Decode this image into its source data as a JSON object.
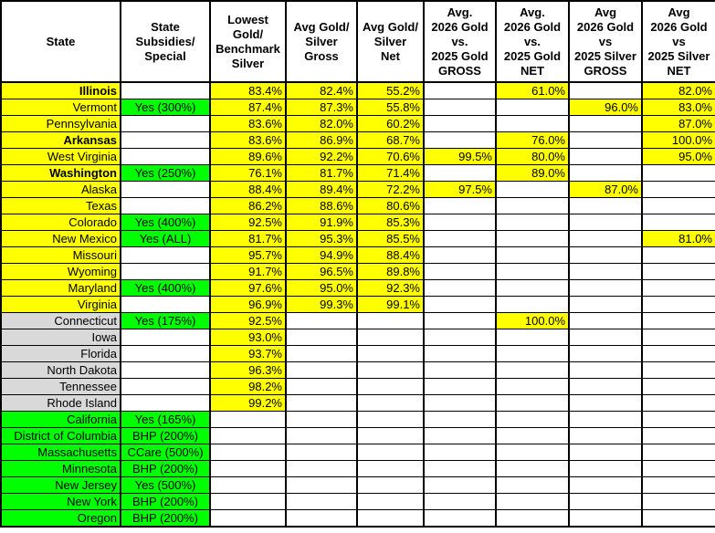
{
  "colors": {
    "highlight_yellow": "#FFFF00",
    "subsidy_green": "#00FF00",
    "group_gray": "#D9D9D9",
    "gridline_black": "#000000",
    "cell_white": "#FFFFFF"
  },
  "table": {
    "columns": [
      "State",
      "State\nSubsidies/\nSpecial",
      "Lowest\nGold/\nBenchmark\nSilver",
      "Avg Gold/\nSilver\nGross",
      "Avg Gold/\nSilver\nNet",
      "Avg.\n2026 Gold\nvs.\n2025 Gold\nGROSS",
      "Avg.\n2026 Gold\nvs.\n2025 Gold\nNET",
      "Avg\n2026 Gold\nvs\n2025 Silver\nGROSS",
      "Avg\n2026 Gold\nvs\n2025 Silver\nNET"
    ],
    "rows": [
      {
        "state": "Illinois",
        "bold": true,
        "group": "yellow",
        "subsidy": "",
        "values": [
          "83.4%",
          "82.4%",
          "55.2%",
          "",
          "61.0%",
          "",
          "82.0%"
        ]
      },
      {
        "state": "Vermont",
        "bold": false,
        "group": "yellow",
        "subsidy": "Yes (300%)",
        "values": [
          "87.4%",
          "87.3%",
          "55.8%",
          "",
          "",
          "96.0%",
          "83.0%"
        ]
      },
      {
        "state": "Pennsylvania",
        "bold": false,
        "group": "yellow",
        "subsidy": "",
        "values": [
          "83.6%",
          "82.0%",
          "60.2%",
          "",
          "",
          "",
          "87.0%"
        ]
      },
      {
        "state": "Arkansas",
        "bold": true,
        "group": "yellow",
        "subsidy": "",
        "values": [
          "83.6%",
          "86.9%",
          "68.7%",
          "",
          "76.0%",
          "",
          "100.0%"
        ]
      },
      {
        "state": "West Virginia",
        "bold": false,
        "group": "yellow",
        "subsidy": "",
        "values": [
          "89.6%",
          "92.2%",
          "70.6%",
          "99.5%",
          "80.0%",
          "",
          "95.0%"
        ]
      },
      {
        "state": "Washington",
        "bold": true,
        "group": "yellow",
        "subsidy": "Yes (250%)",
        "values": [
          "76.1%",
          "81.7%",
          "71.4%",
          "",
          "89.0%",
          "",
          ""
        ]
      },
      {
        "state": "Alaska",
        "bold": false,
        "group": "yellow",
        "subsidy": "",
        "values": [
          "88.4%",
          "89.4%",
          "72.2%",
          "97.5%",
          "",
          "87.0%",
          ""
        ]
      },
      {
        "state": "Texas",
        "bold": false,
        "group": "yellow",
        "subsidy": "",
        "values": [
          "86.2%",
          "88.6%",
          "80.6%",
          "",
          "",
          "",
          ""
        ]
      },
      {
        "state": "Colorado",
        "bold": false,
        "group": "yellow",
        "subsidy": "Yes (400%)",
        "values": [
          "92.5%",
          "91.9%",
          "85.3%",
          "",
          "",
          "",
          ""
        ]
      },
      {
        "state": "New Mexico",
        "bold": false,
        "group": "yellow",
        "subsidy": "Yes (ALL)",
        "values": [
          "81.7%",
          "95.3%",
          "85.5%",
          "",
          "",
          "",
          "81.0%"
        ]
      },
      {
        "state": "Missouri",
        "bold": false,
        "group": "yellow",
        "subsidy": "",
        "values": [
          "95.7%",
          "94.9%",
          "88.4%",
          "",
          "",
          "",
          ""
        ]
      },
      {
        "state": "Wyoming",
        "bold": false,
        "group": "yellow",
        "subsidy": "",
        "values": [
          "91.7%",
          "96.5%",
          "89.8%",
          "",
          "",
          "",
          ""
        ]
      },
      {
        "state": "Maryland",
        "bold": false,
        "group": "yellow",
        "subsidy": "Yes (400%)",
        "values": [
          "97.6%",
          "95.0%",
          "92.3%",
          "",
          "",
          "",
          ""
        ]
      },
      {
        "state": "Virginia",
        "bold": false,
        "group": "yellow",
        "subsidy": "",
        "values": [
          "96.9%",
          "99.3%",
          "99.1%",
          "",
          "",
          "",
          ""
        ]
      },
      {
        "state": "Connecticut",
        "bold": false,
        "group": "gray",
        "subsidy": "Yes (175%)",
        "values": [
          "92.5%",
          "",
          "",
          "",
          "100.0%",
          "",
          ""
        ]
      },
      {
        "state": "Iowa",
        "bold": false,
        "group": "gray",
        "subsidy": "",
        "values": [
          "93.0%",
          "",
          "",
          "",
          "",
          "",
          ""
        ]
      },
      {
        "state": "Florida",
        "bold": false,
        "group": "gray",
        "subsidy": "",
        "values": [
          "93.7%",
          "",
          "",
          "",
          "",
          "",
          ""
        ]
      },
      {
        "state": "North Dakota",
        "bold": false,
        "group": "gray",
        "subsidy": "",
        "values": [
          "96.3%",
          "",
          "",
          "",
          "",
          "",
          ""
        ]
      },
      {
        "state": "Tennessee",
        "bold": false,
        "group": "gray",
        "subsidy": "",
        "values": [
          "98.2%",
          "",
          "",
          "",
          "",
          "",
          ""
        ]
      },
      {
        "state": "Rhode Island",
        "bold": false,
        "group": "gray",
        "subsidy": "",
        "values": [
          "99.2%",
          "",
          "",
          "",
          "",
          "",
          ""
        ]
      },
      {
        "state": "California",
        "bold": false,
        "group": "green",
        "subsidy": "Yes (165%)",
        "values": [
          "",
          "",
          "",
          "",
          "",
          "",
          ""
        ]
      },
      {
        "state": "District of Columbia",
        "bold": false,
        "group": "green",
        "subsidy": "BHP (200%)",
        "values": [
          "",
          "",
          "",
          "",
          "",
          "",
          ""
        ]
      },
      {
        "state": "Massachusetts",
        "bold": false,
        "group": "green",
        "subsidy": "CCare (500%)",
        "values": [
          "",
          "",
          "",
          "",
          "",
          "",
          ""
        ]
      },
      {
        "state": "Minnesota",
        "bold": false,
        "group": "green",
        "subsidy": "BHP (200%)",
        "values": [
          "",
          "",
          "",
          "",
          "",
          "",
          ""
        ]
      },
      {
        "state": "New Jersey",
        "bold": false,
        "group": "green",
        "subsidy": "Yes (500%)",
        "values": [
          "",
          "",
          "",
          "",
          "",
          "",
          ""
        ]
      },
      {
        "state": "New York",
        "bold": false,
        "group": "green",
        "subsidy": "BHP (200%)",
        "values": [
          "",
          "",
          "",
          "",
          "",
          "",
          ""
        ]
      },
      {
        "state": "Oregon",
        "bold": false,
        "group": "green",
        "subsidy": "BHP (200%)",
        "values": [
          "",
          "",
          "",
          "",
          "",
          "",
          ""
        ]
      }
    ]
  }
}
